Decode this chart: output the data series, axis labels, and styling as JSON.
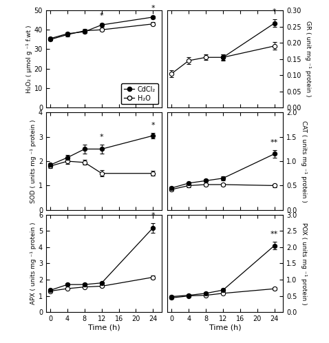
{
  "time": [
    0,
    4,
    8,
    12,
    24
  ],
  "H2O2": {
    "cdcl2": [
      35.5,
      38.0,
      39.0,
      42.5,
      46.5
    ],
    "h2o": [
      35.0,
      37.5,
      39.5,
      40.0,
      43.0
    ],
    "cdcl2_err": [
      0.8,
      0.7,
      0.6,
      0.9,
      0.8
    ],
    "h2o_err": [
      0.7,
      0.8,
      0.8,
      0.8,
      0.9
    ],
    "ylabel": "H₂O₂ ( μmol g ⁻¹ f.wt )",
    "ylim": [
      0,
      50
    ],
    "yticks": [
      0,
      10,
      20,
      30,
      40,
      50
    ],
    "star_at": [
      12,
      24
    ],
    "star_labels": [
      "*",
      "*"
    ]
  },
  "GR": {
    "cdcl2": [
      null,
      null,
      null,
      0.155,
      0.26
    ],
    "h2o": [
      0.105,
      0.145,
      0.155,
      0.155,
      0.19
    ],
    "cdcl2_err": [
      null,
      null,
      null,
      0.008,
      0.012
    ],
    "h2o_err": [
      0.01,
      0.01,
      0.008,
      0.01,
      0.012
    ],
    "ylabel": "GR ( unit mg ⁻¹ protein )",
    "ylim": [
      0.0,
      0.3
    ],
    "yticks": [
      0.0,
      0.05,
      0.1,
      0.15,
      0.2,
      0.25,
      0.3
    ],
    "star_at": [
      24
    ],
    "star_labels": [
      "*"
    ]
  },
  "SOD": {
    "cdcl2": [
      1.85,
      2.15,
      2.5,
      2.5,
      3.05
    ],
    "h2o": [
      1.8,
      2.0,
      1.95,
      1.5,
      1.5
    ],
    "cdcl2_err": [
      0.08,
      0.1,
      0.18,
      0.18,
      0.12
    ],
    "h2o_err": [
      0.08,
      0.1,
      0.1,
      0.12,
      0.1
    ],
    "ylabel": "SOD ( units mg ⁻¹ protein )",
    "ylim": [
      0,
      4
    ],
    "yticks": [
      0,
      1,
      2,
      3,
      4
    ],
    "star_at": [
      12,
      24
    ],
    "star_labels": [
      "*",
      "*"
    ]
  },
  "CAT": {
    "cdcl2": [
      0.45,
      0.55,
      0.6,
      0.65,
      1.15
    ],
    "h2o": [
      0.42,
      0.5,
      0.52,
      0.52,
      0.5
    ],
    "cdcl2_err": [
      0.03,
      0.03,
      0.03,
      0.04,
      0.08
    ],
    "h2o_err": [
      0.03,
      0.03,
      0.03,
      0.03,
      0.03
    ],
    "ylabel": "CAT ( units mg ⁻¹ protein )",
    "ylim": [
      0,
      2
    ],
    "yticks": [
      0,
      0.5,
      1.0,
      1.5,
      2.0
    ],
    "star_at": [
      24
    ],
    "star_labels": [
      "**"
    ]
  },
  "APX": {
    "cdcl2": [
      1.35,
      1.7,
      1.7,
      1.8,
      5.2
    ],
    "h2o": [
      1.3,
      1.45,
      1.55,
      1.6,
      2.15
    ],
    "cdcl2_err": [
      0.06,
      0.07,
      0.07,
      0.08,
      0.3
    ],
    "h2o_err": [
      0.06,
      0.06,
      0.07,
      0.07,
      0.12
    ],
    "ylabel": "APX ( units mg ⁻¹ protein )",
    "ylim": [
      0,
      6
    ],
    "yticks": [
      0,
      1,
      2,
      3,
      4,
      5,
      6
    ],
    "star_at": [
      24
    ],
    "star_labels": [
      "*"
    ]
  },
  "POX": {
    "cdcl2": [
      0.48,
      0.52,
      0.58,
      0.68,
      2.05
    ],
    "h2o": [
      0.44,
      0.5,
      0.52,
      0.58,
      0.72
    ],
    "cdcl2_err": [
      0.03,
      0.03,
      0.03,
      0.04,
      0.12
    ],
    "h2o_err": [
      0.03,
      0.03,
      0.03,
      0.03,
      0.04
    ],
    "ylabel": "POX ( units mg ⁻¹ protein )",
    "ylim": [
      0,
      3
    ],
    "yticks": [
      0,
      0.5,
      1.0,
      1.5,
      2.0,
      2.5,
      3.0
    ],
    "star_at": [
      24
    ],
    "star_labels": [
      "**"
    ]
  },
  "legend_labels": [
    "CdCl₂",
    "H₂O"
  ],
  "xlabel": "Time (h)",
  "xticks": [
    0,
    4,
    8,
    12,
    16,
    20,
    24
  ],
  "xticklabels": [
    "0",
    "4",
    "8",
    "12",
    "16",
    "20",
    "24"
  ]
}
